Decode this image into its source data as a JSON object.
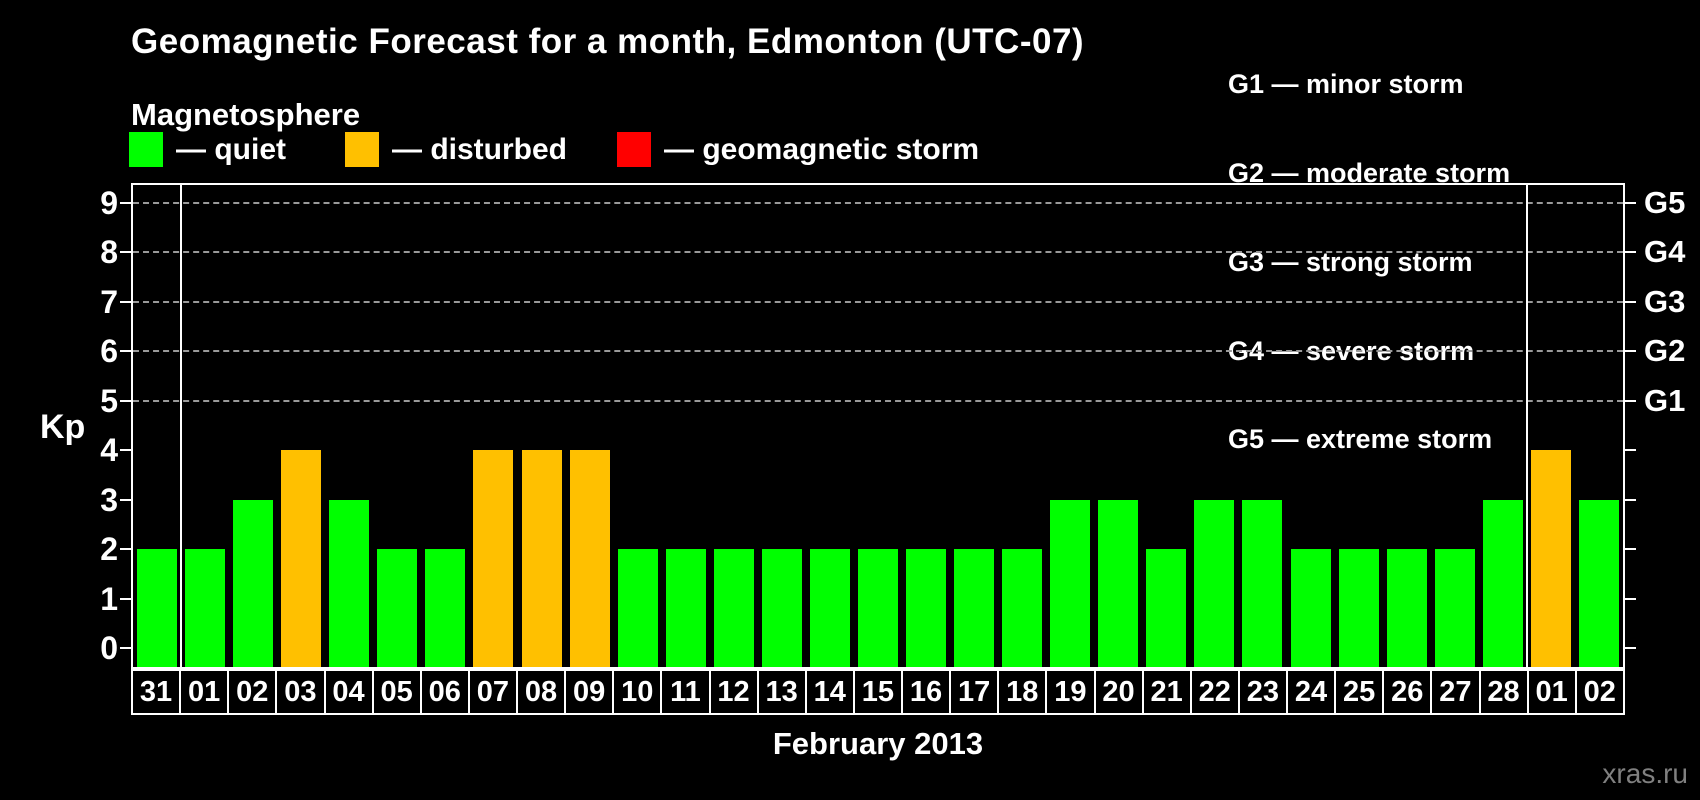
{
  "header": {
    "title": "Geomagnetic Forecast for a month, Edmonton (UTC-07)",
    "legend_title": "Magnetosphere",
    "legend_items": [
      {
        "key": "quiet",
        "label": "— quiet",
        "color": "#00FF00"
      },
      {
        "key": "disturbed",
        "label": "— disturbed",
        "color": "#FFC000"
      },
      {
        "key": "storm",
        "label": "— geomagnetic storm",
        "color": "#FF0000"
      }
    ],
    "storm_scale": [
      "G1 — minor storm",
      "G2 — moderate storm",
      "G3 — strong storm",
      "G4 — severe storm",
      "G5 — extreme storm"
    ]
  },
  "axes": {
    "y_label": "Kp",
    "x_label": "February 2013"
  },
  "footer": {
    "watermark": "xras.ru"
  },
  "chart_data": {
    "type": "bar",
    "title": "Geomagnetic Forecast for a month, Edmonton (UTC-07)",
    "xlabel": "February 2013",
    "ylabel": "Kp",
    "ylim": [
      0,
      9
    ],
    "categories": [
      "31",
      "01",
      "02",
      "03",
      "04",
      "05",
      "06",
      "07",
      "08",
      "09",
      "10",
      "11",
      "12",
      "13",
      "14",
      "15",
      "16",
      "17",
      "18",
      "19",
      "20",
      "21",
      "22",
      "23",
      "24",
      "25",
      "26",
      "27",
      "28",
      "01",
      "02"
    ],
    "values": [
      2,
      2,
      3,
      4,
      3,
      2,
      2,
      4,
      4,
      4,
      2,
      2,
      2,
      2,
      2,
      2,
      2,
      2,
      2,
      3,
      3,
      2,
      3,
      3,
      2,
      2,
      2,
      2,
      3,
      4,
      3
    ],
    "statuses": [
      "quiet",
      "quiet",
      "quiet",
      "disturbed",
      "quiet",
      "quiet",
      "quiet",
      "disturbed",
      "disturbed",
      "disturbed",
      "quiet",
      "quiet",
      "quiet",
      "quiet",
      "quiet",
      "quiet",
      "quiet",
      "quiet",
      "quiet",
      "quiet",
      "quiet",
      "quiet",
      "quiet",
      "quiet",
      "quiet",
      "quiet",
      "quiet",
      "quiet",
      "quiet",
      "disturbed",
      "quiet"
    ],
    "status_colors": {
      "quiet": "#00FF00",
      "disturbed": "#FFC000",
      "storm": "#FF0000"
    },
    "y_ticks": [
      0,
      1,
      2,
      3,
      4,
      5,
      6,
      7,
      8,
      9
    ],
    "gridlines_at": [
      5,
      6,
      7,
      8,
      9
    ],
    "right_axis_labels": [
      {
        "kp": 5,
        "label": "G1"
      },
      {
        "kp": 6,
        "label": "G2"
      },
      {
        "kp": 7,
        "label": "G3"
      },
      {
        "kp": 8,
        "label": "G4"
      },
      {
        "kp": 9,
        "label": "G5"
      }
    ],
    "month_separators_after_index": [
      0,
      28
    ],
    "grid": true,
    "legend_position": "top-left",
    "background": "#000000"
  }
}
